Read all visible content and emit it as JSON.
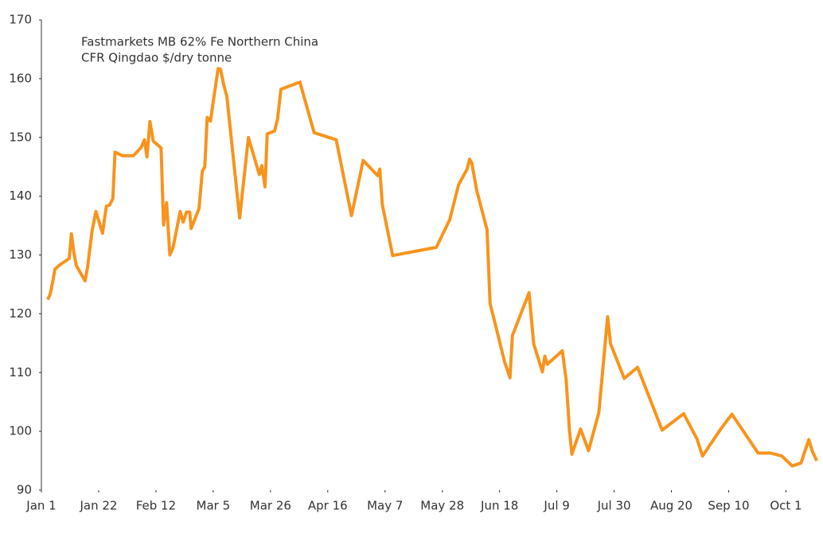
{
  "chart_data": {
    "type": "line",
    "annotation": [
      "Fastmarkets MB 62% Fe Northern China",
      "CFR Qingdao $/dry tonne"
    ],
    "x": [
      2.3,
      3.2,
      4.1,
      5,
      6.7,
      10.2,
      11,
      11.9,
      12.8,
      16,
      16.9,
      18.6,
      20,
      22.4,
      23.8,
      25,
      26.2,
      27,
      29.7,
      33.7,
      36.6,
      37.8,
      38.7,
      39.8,
      41,
      43.9,
      44.8,
      45.9,
      47.1,
      48.3,
      50.9,
      52,
      53.2,
      54.4,
      54.9,
      57.8,
      59,
      59.9,
      60.8,
      62,
      64.8,
      65.7,
      66.9,
      68,
      72.7,
      75.9,
      79.9,
      80.8,
      82,
      82.8,
      85.5,
      86.6,
      87.8,
      94.8,
      100,
      108.1,
      113.7,
      118,
      123.3,
      124.1,
      125,
      128.8,
      144.8,
      149.7,
      153,
      156.1,
      157,
      157.8,
      159.6,
      163.4,
      164.5,
      169.8,
      171.8,
      172.7,
      178.8,
      180.5,
      183.7,
      184.6,
      185.5,
      191,
      192.4,
      193.6,
      194.5,
      197.7,
      200.6,
      204.4,
      207.6,
      208.7,
      213.7,
      218.6,
      227.6,
      235.5,
      240.4,
      242.4,
      249.4,
      253.2,
      262.8,
      267.4,
      271.5,
      275.3,
      278.5,
      281.4,
      282.6,
      284.3
    ],
    "series": [
      {
        "name": "Fastmarkets MB 62% Fe Northern China CFR Qingdao",
        "color": "#f7941d",
        "values": [
          122.4,
          123.3,
          125.3,
          127.6,
          128.3,
          129.4,
          133.6,
          130.4,
          128.2,
          125.6,
          127.8,
          134.1,
          137.4,
          133.7,
          138.3,
          138.5,
          139.6,
          147.5,
          146.9,
          146.9,
          148.3,
          149.6,
          146.7,
          152.7,
          149.4,
          148.2,
          135.1,
          138.9,
          130,
          131.3,
          137.4,
          135.6,
          137.3,
          137.3,
          134.5,
          137.9,
          144.3,
          145,
          153.4,
          152.8,
          161.7,
          161.6,
          158.9,
          157,
          136.3,
          150,
          143.7,
          145.2,
          141.6,
          150.6,
          151.1,
          153.1,
          158.2,
          159.4,
          150.8,
          149.6,
          136.7,
          146.1,
          143.5,
          144.6,
          138.6,
          129.9,
          131.3,
          136,
          142,
          144.6,
          146.3,
          145.7,
          141,
          134.3,
          121.8,
          111.9,
          109.1,
          116.3,
          123.6,
          114.9,
          110.1,
          112.8,
          111.4,
          113.7,
          108.8,
          100.3,
          96.1,
          100.4,
          96.7,
          103.2,
          119.5,
          114.9,
          109,
          110.9,
          100.2,
          103,
          98.7,
          95.8,
          100.6,
          102.9,
          96.3,
          96.3,
          95.8,
          94.1,
          94.6,
          98.6,
          96.7,
          95
        ]
      }
    ],
    "xlim": [
      0,
      286
    ],
    "xticks": [
      {
        "value": 0,
        "label": "Jan 1"
      },
      {
        "value": 21,
        "label": "Jan 22"
      },
      {
        "value": 42,
        "label": "Feb 12"
      },
      {
        "value": 63,
        "label": "Mar 5"
      },
      {
        "value": 84,
        "label": "Mar 26"
      },
      {
        "value": 105,
        "label": "Apr 16"
      },
      {
        "value": 126,
        "label": "May 7"
      },
      {
        "value": 147,
        "label": "May 28"
      },
      {
        "value": 168,
        "label": "Jun 18"
      },
      {
        "value": 189,
        "label": "Jul 9"
      },
      {
        "value": 210,
        "label": "Jul 30"
      },
      {
        "value": 231,
        "label": "Aug 20"
      },
      {
        "value": 252,
        "label": "Sep 10"
      },
      {
        "value": 273,
        "label": "Oct 1"
      }
    ],
    "ylim": [
      90,
      170
    ],
    "yticks": [
      90,
      100,
      110,
      120,
      130,
      140,
      150,
      160,
      170
    ]
  }
}
